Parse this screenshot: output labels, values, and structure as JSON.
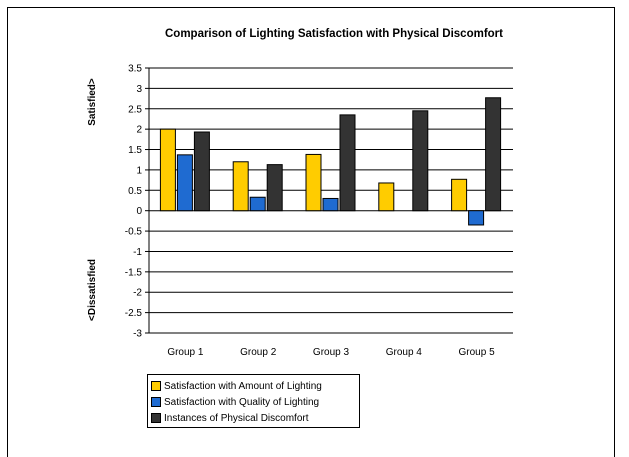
{
  "chart_data": {
    "type": "bar",
    "title": "Comparison of Lighting Satisfaction with Physical Discomfort",
    "ylabel_top": "Satisfied>",
    "ylabel_bottom": "<Dissatisfied",
    "ylim": [
      -3,
      3.5
    ],
    "yticks": [
      "3.5",
      "3",
      "2.5",
      "2",
      "1.5",
      "1",
      "0.5",
      "0",
      "-0.5",
      "-1",
      "-1.5",
      "-2",
      "-2.5",
      "-3"
    ],
    "categories": [
      "Group 1",
      "Group 2",
      "Group 3",
      "Group 4",
      "Group 5"
    ],
    "series": [
      {
        "name": "Satisfaction with Amount of Lighting",
        "color": "#FFCC00",
        "values": [
          2.0,
          1.2,
          1.38,
          0.68,
          0.77
        ]
      },
      {
        "name": "Satisfaction with Quality of Lighting",
        "color": "#1F6BD1",
        "values": [
          1.37,
          0.33,
          0.3,
          null,
          -0.35
        ]
      },
      {
        "name": "Instances of Physical Discomfort",
        "color": "#333333",
        "values": [
          1.93,
          1.13,
          2.35,
          2.45,
          2.77
        ]
      }
    ],
    "grid": true,
    "legend_position": "bottom-left"
  }
}
